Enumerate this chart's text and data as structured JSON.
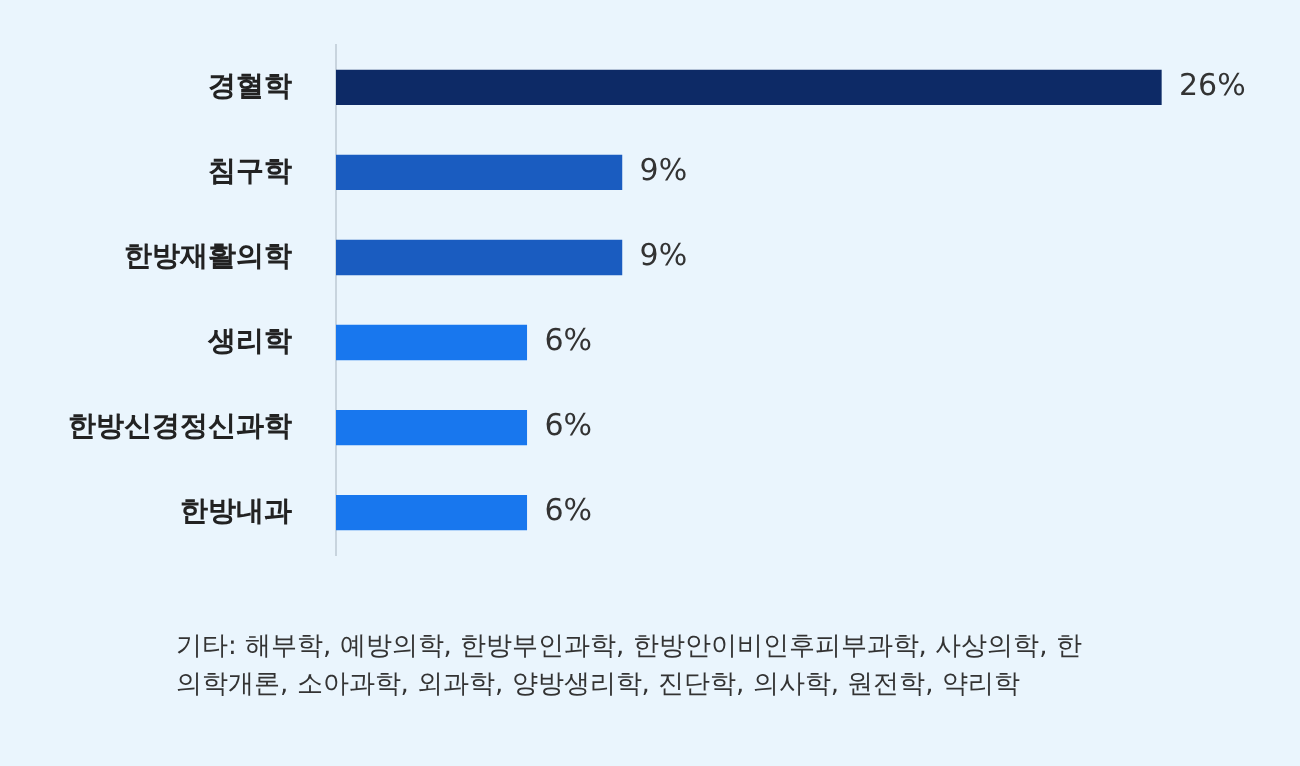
{
  "chart_data": {
    "type": "bar",
    "orientation": "horizontal",
    "categories": [
      "경혈학",
      "침구학",
      "한방재활의학",
      "생리학",
      "한방신경정신과학",
      "한방내과"
    ],
    "values": [
      26,
      9,
      9,
      6,
      6,
      6
    ],
    "value_labels": [
      "26%",
      "9%",
      "9%",
      "6%",
      "6%",
      "6%"
    ],
    "colors": [
      "#0d2a66",
      "#1a5cc0",
      "#1a5cc0",
      "#1877ee",
      "#1877ee",
      "#1877ee"
    ],
    "grid": false,
    "legend": false,
    "annotations": [
      "기타: 해부학, 예방의학, 한방부인과학, 한방안이비인후피부과학, 사상의학, 한의학개론, 소아과학, 외과학, 양방생리학, 진단학, 의사학, 원전학, 약리학"
    ]
  }
}
